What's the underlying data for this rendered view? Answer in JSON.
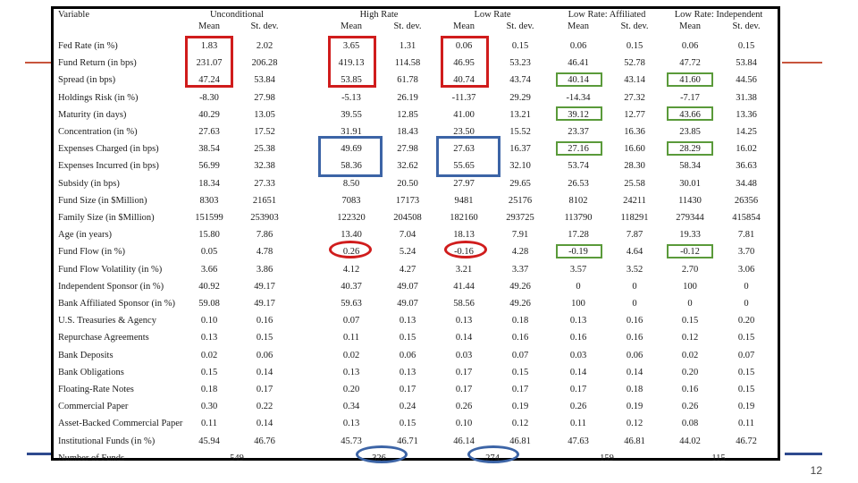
{
  "page_number": "12",
  "table": {
    "variable_header": "Variable",
    "groups": [
      "Unconditional",
      "High Rate",
      "Low Rate",
      "Low Rate: Affiliated",
      "Low Rate: Independent"
    ],
    "subheaders": [
      "Mean",
      "St. dev.",
      "Mean",
      "St. dev.",
      "Mean",
      "St. dev.",
      "Mean",
      "St. dev.",
      "Mean",
      "St. dev."
    ],
    "rows": [
      {
        "label": "Fed Rate (in %)",
        "values": [
          "1.83",
          "2.02",
          "3.65",
          "1.31",
          "0.06",
          "0.15",
          "0.06",
          "0.15",
          "0.06",
          "0.15"
        ]
      },
      {
        "label": "Fund Return (in bps)",
        "values": [
          "231.07",
          "206.28",
          "419.13",
          "114.58",
          "46.95",
          "53.23",
          "46.41",
          "52.78",
          "47.72",
          "53.84"
        ]
      },
      {
        "label": "Spread (in bps)",
        "values": [
          "47.24",
          "53.84",
          "53.85",
          "61.78",
          "40.74",
          "43.74",
          "40.14",
          "43.14",
          "41.60",
          "44.56"
        ]
      },
      {
        "label": "Holdings Risk (in %)",
        "values": [
          "-8.30",
          "27.98",
          "-5.13",
          "26.19",
          "-11.37",
          "29.29",
          "-14.34",
          "27.32",
          "-7.17",
          "31.38"
        ]
      },
      {
        "label": "Maturity (in days)",
        "values": [
          "40.29",
          "13.05",
          "39.55",
          "12.85",
          "41.00",
          "13.21",
          "39.12",
          "12.77",
          "43.66",
          "13.36"
        ]
      },
      {
        "label": "Concentration (in %)",
        "values": [
          "27.63",
          "17.52",
          "31.91",
          "18.43",
          "23.50",
          "15.52",
          "23.37",
          "16.36",
          "23.85",
          "14.25"
        ]
      },
      {
        "label": "Expenses Charged (in bps)",
        "values": [
          "38.54",
          "25.38",
          "49.69",
          "27.98",
          "27.63",
          "16.37",
          "27.16",
          "16.60",
          "28.29",
          "16.02"
        ]
      },
      {
        "label": "Expenses Incurred (in bps)",
        "values": [
          "56.99",
          "32.38",
          "58.36",
          "32.62",
          "55.65",
          "32.10",
          "53.74",
          "28.30",
          "58.34",
          "36.63"
        ]
      },
      {
        "label": "Subsidy (in bps)",
        "values": [
          "18.34",
          "27.33",
          "8.50",
          "20.50",
          "27.97",
          "29.65",
          "26.53",
          "25.58",
          "30.01",
          "34.48"
        ]
      },
      {
        "label": "Fund Size (in $Million)",
        "values": [
          "8303",
          "21651",
          "7083",
          "17173",
          "9481",
          "25176",
          "8102",
          "24211",
          "11430",
          "26356"
        ]
      },
      {
        "label": "Family Size (in $Million)",
        "values": [
          "151599",
          "253903",
          "122320",
          "204508",
          "182160",
          "293725",
          "113790",
          "118291",
          "279344",
          "415854"
        ]
      },
      {
        "label": "Age (in years)",
        "values": [
          "15.80",
          "7.86",
          "13.40",
          "7.04",
          "18.13",
          "7.91",
          "17.28",
          "7.87",
          "19.33",
          "7.81"
        ]
      },
      {
        "label": "Fund Flow (in %)",
        "values": [
          "0.05",
          "4.78",
          "0.26",
          "5.24",
          "-0.16",
          "4.28",
          "-0.19",
          "4.64",
          "-0.12",
          "3.70"
        ]
      },
      {
        "label": "Fund Flow Volatility (in %)",
        "values": [
          "3.66",
          "3.86",
          "4.12",
          "4.27",
          "3.21",
          "3.37",
          "3.57",
          "3.52",
          "2.70",
          "3.06"
        ]
      },
      {
        "label": "Independent Sponsor (in %)",
        "values": [
          "40.92",
          "49.17",
          "40.37",
          "49.07",
          "41.44",
          "49.26",
          "0",
          "0",
          "100",
          "0"
        ]
      },
      {
        "label": "Bank Affiliated Sponsor (in %)",
        "values": [
          "59.08",
          "49.17",
          "59.63",
          "49.07",
          "58.56",
          "49.26",
          "100",
          "0",
          "0",
          "0"
        ]
      },
      {
        "label": "U.S. Treasuries & Agency",
        "values": [
          "0.10",
          "0.16",
          "0.07",
          "0.13",
          "0.13",
          "0.18",
          "0.13",
          "0.16",
          "0.15",
          "0.20"
        ]
      },
      {
        "label": "Repurchase Agreements",
        "values": [
          "0.13",
          "0.15",
          "0.11",
          "0.15",
          "0.14",
          "0.16",
          "0.16",
          "0.16",
          "0.12",
          "0.15"
        ]
      },
      {
        "label": "Bank Deposits",
        "values": [
          "0.02",
          "0.06",
          "0.02",
          "0.06",
          "0.03",
          "0.07",
          "0.03",
          "0.06",
          "0.02",
          "0.07"
        ]
      },
      {
        "label": "Bank Obligations",
        "values": [
          "0.15",
          "0.14",
          "0.13",
          "0.13",
          "0.17",
          "0.15",
          "0.14",
          "0.14",
          "0.20",
          "0.15"
        ]
      },
      {
        "label": "Floating-Rate Notes",
        "values": [
          "0.18",
          "0.17",
          "0.20",
          "0.17",
          "0.17",
          "0.17",
          "0.17",
          "0.18",
          "0.16",
          "0.15"
        ]
      },
      {
        "label": "Commercial Paper",
        "values": [
          "0.30",
          "0.22",
          "0.34",
          "0.24",
          "0.26",
          "0.19",
          "0.26",
          "0.19",
          "0.26",
          "0.19"
        ]
      },
      {
        "label": "Asset-Backed Commercial Paper",
        "values": [
          "0.11",
          "0.14",
          "0.13",
          "0.15",
          "0.10",
          "0.12",
          "0.11",
          "0.12",
          "0.08",
          "0.11"
        ]
      },
      {
        "label": "Institutional Funds (in %)",
        "values": [
          "45.94",
          "46.76",
          "45.73",
          "46.71",
          "46.14",
          "46.81",
          "47.63",
          "46.81",
          "44.02",
          "46.72"
        ]
      }
    ],
    "funds_row": {
      "label": "Number of Funds",
      "values": [
        "549",
        "326",
        "274",
        "159",
        "115"
      ]
    }
  }
}
